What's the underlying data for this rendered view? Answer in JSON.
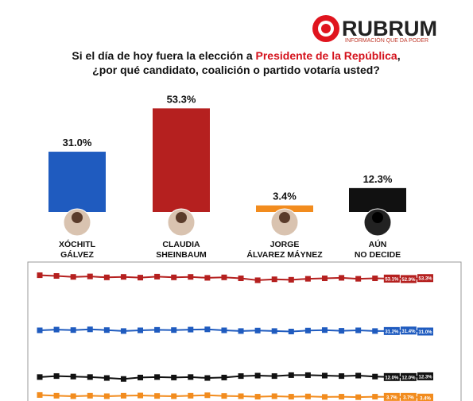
{
  "header": {
    "logo": "RUBRUM",
    "tagline": "INFORMACIÓN QUE DA PODER"
  },
  "chart_data": [
    {
      "type": "bar",
      "title": "Si el día de hoy fuera la elección a ",
      "title_highlight": "Presidente de la República",
      "title_end": ",",
      "subtitle": "¿por qué candidato, coalición o partido votaría usted?",
      "categories": [
        "XÓCHITL\nGÁLVEZ",
        "CLAUDIA\nSHEINBAUM",
        "JORGE\nÁLVAREZ MÁYNEZ",
        "AÚN\nNO DECIDE"
      ],
      "values": [
        31.0,
        53.3,
        3.4,
        12.3
      ],
      "value_labels": [
        "31.0%",
        "53.3%",
        "3.4%",
        "12.3%"
      ],
      "colors": [
        "#1f5bbf",
        "#b5201f",
        "#f28c1e",
        "#111111"
      ]
    },
    {
      "type": "line",
      "ylim": [
        2,
        60
      ],
      "series": [
        {
          "color": "#b5201f",
          "values": [
            54.5,
            54.2,
            53.8,
            54.0,
            53.6,
            53.8,
            53.5,
            53.9,
            53.6,
            53.8,
            53.4,
            53.6,
            53.2,
            52.4,
            52.8,
            52.6,
            53.0,
            53.2,
            53.4,
            53.0,
            53.2,
            53.1,
            52.9,
            53.3
          ],
          "value_labels": [
            null,
            null,
            null,
            null,
            null,
            null,
            null,
            null,
            null,
            null,
            null,
            null,
            null,
            null,
            null,
            null,
            null,
            null,
            null,
            null,
            null,
            "53.1%",
            "52.9%",
            "53.3%"
          ]
        },
        {
          "color": "#1f5bbf",
          "values": [
            31.5,
            31.8,
            31.6,
            31.9,
            31.6,
            31.2,
            31.5,
            31.7,
            31.6,
            31.8,
            31.9,
            31.5,
            31.2,
            31.4,
            31.2,
            31.0,
            31.4,
            31.6,
            31.3,
            31.5,
            31.2,
            31.2,
            31.4,
            31.0
          ],
          "value_labels": [
            null,
            null,
            null,
            null,
            null,
            null,
            null,
            null,
            null,
            null,
            null,
            null,
            null,
            null,
            null,
            null,
            null,
            null,
            null,
            null,
            null,
            "31.2%",
            "31.4%",
            "31.0%"
          ]
        },
        {
          "color": "#111111",
          "values": [
            12.0,
            12.4,
            12.2,
            12.0,
            11.6,
            11.2,
            11.8,
            12.0,
            11.8,
            12.0,
            11.6,
            11.8,
            12.4,
            12.6,
            12.4,
            12.8,
            12.8,
            12.6,
            12.4,
            12.6,
            12.2,
            12.0,
            12.0,
            12.3
          ],
          "value_labels": [
            null,
            null,
            null,
            null,
            null,
            null,
            null,
            null,
            null,
            null,
            null,
            null,
            null,
            null,
            null,
            null,
            null,
            null,
            null,
            null,
            null,
            "12.0%",
            "12.0%",
            "12.3%"
          ]
        },
        {
          "color": "#f28c1e",
          "values": [
            4.5,
            4.2,
            4.0,
            4.2,
            4.0,
            4.2,
            4.3,
            4.1,
            4.0,
            4.2,
            4.4,
            4.1,
            4.0,
            3.8,
            4.0,
            3.8,
            3.9,
            3.7,
            3.8,
            3.6,
            3.8,
            3.7,
            3.7,
            3.4
          ],
          "value_labels": [
            null,
            null,
            null,
            null,
            null,
            null,
            null,
            null,
            null,
            null,
            null,
            null,
            null,
            null,
            null,
            null,
            null,
            null,
            null,
            null,
            null,
            "3.7%",
            "3.7%",
            "3.4%"
          ]
        }
      ]
    }
  ]
}
